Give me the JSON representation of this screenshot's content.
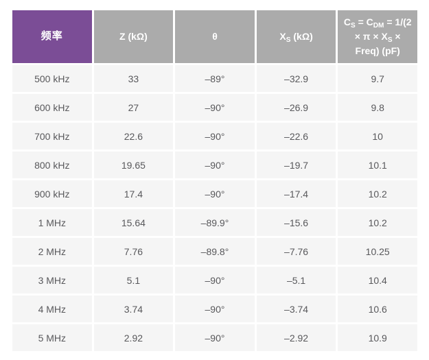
{
  "colors": {
    "header_purple": "#7b4d96",
    "header_gray": "#ababab",
    "row_bg": "#f5f5f5",
    "cell_text": "#58585b",
    "header_text": "#ffffff",
    "page_bg": "#ffffff"
  },
  "chart_data": {
    "type": "table",
    "columns": [
      {
        "name": "frequency",
        "accent": true,
        "parts": [
          {
            "t": "频率"
          }
        ]
      },
      {
        "name": "z-kohm",
        "accent": false,
        "parts": [
          {
            "t": "Z (kΩ)"
          }
        ]
      },
      {
        "name": "theta",
        "accent": false,
        "parts": [
          {
            "t": "θ"
          }
        ]
      },
      {
        "name": "xs-kohm",
        "accent": false,
        "parts": [
          {
            "t": "X"
          },
          {
            "t": "S",
            "sub": true
          },
          {
            "t": " (kΩ)"
          }
        ]
      },
      {
        "name": "cs-cdm-formula",
        "accent": false,
        "parts": [
          {
            "t": "C"
          },
          {
            "t": "S",
            "sub": true
          },
          {
            "t": " = C"
          },
          {
            "t": "DM",
            "sub": true
          },
          {
            "t": " = 1/(2 × π × X"
          },
          {
            "t": "S",
            "sub": true
          },
          {
            "t": " × Freq) (pF)"
          }
        ]
      }
    ],
    "rows": [
      [
        "500 kHz",
        "33",
        "–89°",
        "–32.9",
        "9.7"
      ],
      [
        "600 kHz",
        "27",
        "–90°",
        "–26.9",
        "9.8"
      ],
      [
        "700 kHz",
        "22.6",
        "–90°",
        "–22.6",
        "10"
      ],
      [
        "800 kHz",
        "19.65",
        "–90°",
        "–19.7",
        "10.1"
      ],
      [
        "900 kHz",
        "17.4",
        "–90°",
        "–17.4",
        "10.2"
      ],
      [
        "1 MHz",
        "15.64",
        "–89.9°",
        "–15.6",
        "10.2"
      ],
      [
        "2 MHz",
        "7.76",
        "–89.8°",
        "–7.76",
        "10.25"
      ],
      [
        "3 MHz",
        "5.1",
        "–90°",
        "–5.1",
        "10.4"
      ],
      [
        "4 MHz",
        "3.74",
        "–90°",
        "–3.74",
        "10.6"
      ],
      [
        "5 MHz",
        "2.92",
        "–90°",
        "–2.92",
        "10.9"
      ]
    ]
  }
}
